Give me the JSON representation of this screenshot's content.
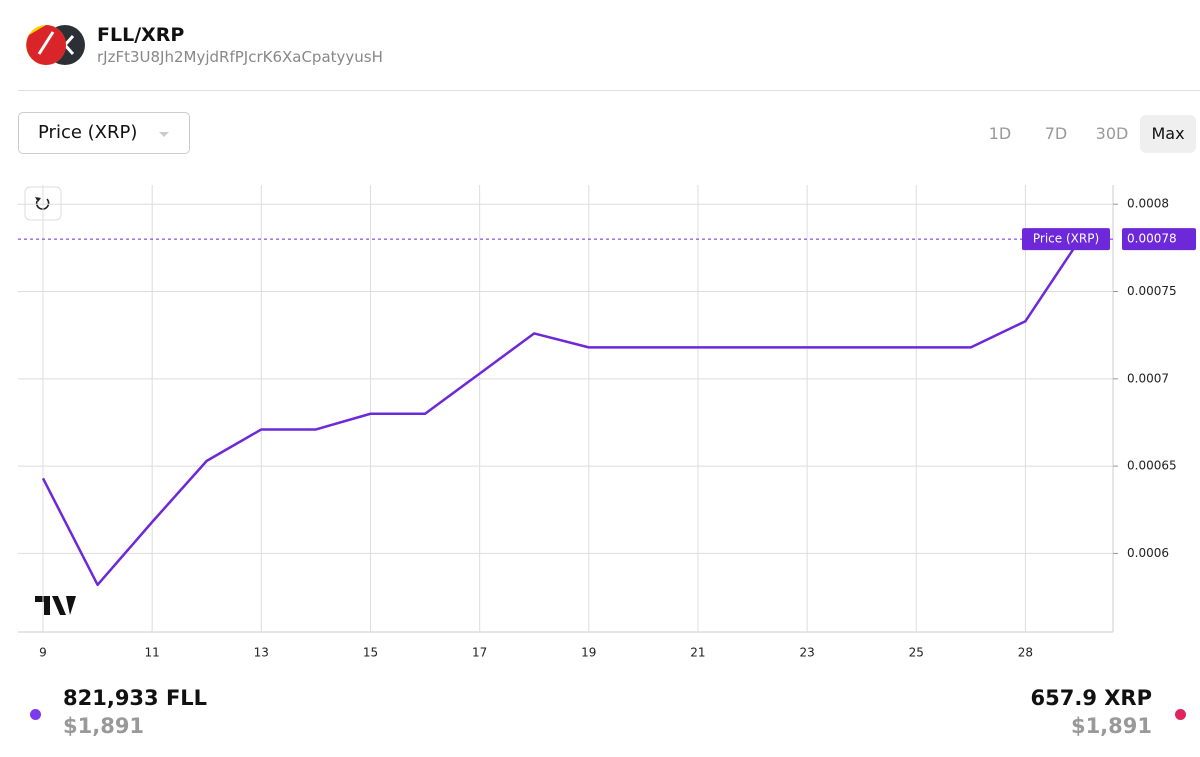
{
  "header": {
    "pair": "FLL/XRP",
    "address": "rJzFt3U8Jh2MyjdRfPJcrK6XaCpatyyusH"
  },
  "controls": {
    "metric": "Price (XRP)",
    "ranges": [
      "1D",
      "7D",
      "30D",
      "Max"
    ]
  },
  "chart_data": {
    "type": "line",
    "series_name": "Price (XRP)",
    "color": "#6d28d9",
    "categories": [
      "9",
      null,
      "11",
      null,
      "13",
      null,
      "15",
      null,
      "17",
      null,
      "19",
      null,
      "21",
      null,
      "23",
      null,
      "25",
      null,
      "28",
      null
    ],
    "values": [
      0.000643,
      0.000582,
      0.000618,
      0.000653,
      0.000671,
      0.000671,
      0.00068,
      0.00068,
      0.000703,
      0.000726,
      0.000718,
      0.000718,
      0.000718,
      0.000718,
      0.000718,
      0.000718,
      0.000718,
      0.000718,
      0.000733,
      0.00078
    ],
    "ylim": [
      0.000555,
      0.000811
    ],
    "yticks": [
      0.0006,
      0.00065,
      0.0007,
      0.00075,
      0.0008
    ],
    "grid": true
  },
  "footer": {
    "base_amount": "821,933 FLL",
    "base_usd": "$1,891",
    "quote_amount": "657.9 XRP",
    "quote_usd": "$1,891"
  }
}
